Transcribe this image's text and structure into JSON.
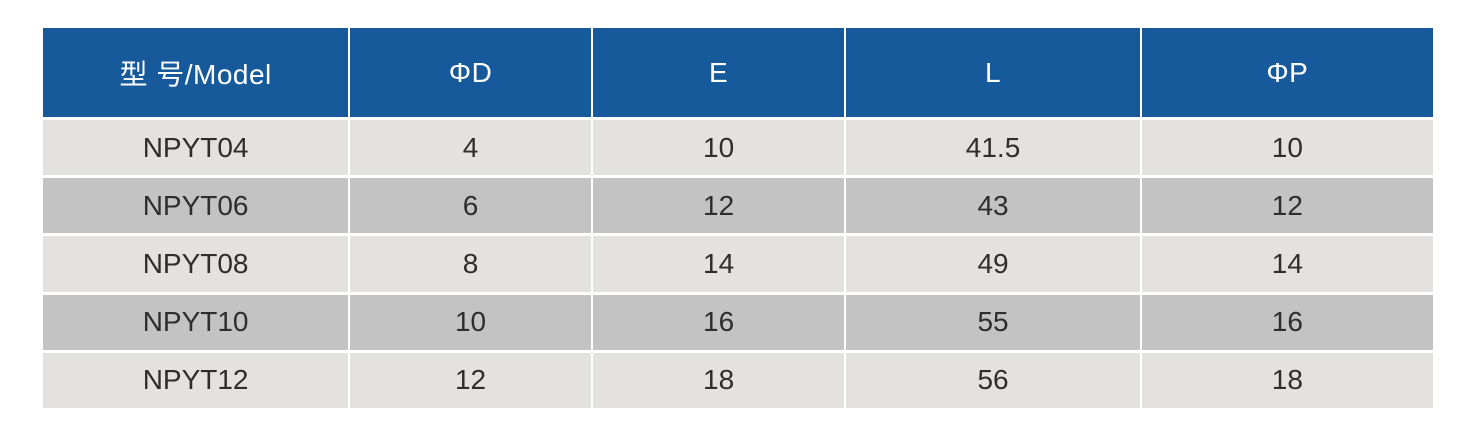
{
  "table": {
    "columns": [
      "型 号/Model",
      "ΦD",
      "E",
      "L",
      "ΦP"
    ],
    "rows": [
      [
        "NPYT04",
        "4",
        "10",
        "41.5",
        "10"
      ],
      [
        "NPYT06",
        "6",
        "12",
        "43",
        "12"
      ],
      [
        "NPYT08",
        "8",
        "14",
        "49",
        "14"
      ],
      [
        "NPYT10",
        "10",
        "16",
        "55",
        "16"
      ],
      [
        "NPYT12",
        "12",
        "18",
        "56",
        "18"
      ]
    ],
    "colors": {
      "header_bg": "#175a9c",
      "header_text": "#ffffff",
      "row_light": "#e3e2e0",
      "row_dark": "#c3c3c3",
      "body_text": "#2e2e2e",
      "page_bg": "#ffffff"
    }
  },
  "chart_data": {
    "type": "table",
    "title": "",
    "columns": [
      "型 号/Model",
      "ΦD",
      "E",
      "L",
      "ΦP"
    ],
    "series": [
      {
        "name": "NPYT04",
        "values": [
          4,
          10,
          41.5,
          10
        ]
      },
      {
        "name": "NPYT06",
        "values": [
          6,
          12,
          43,
          12
        ]
      },
      {
        "name": "NPYT08",
        "values": [
          8,
          14,
          49,
          14
        ]
      },
      {
        "name": "NPYT10",
        "values": [
          10,
          16,
          55,
          16
        ]
      },
      {
        "name": "NPYT12",
        "values": [
          12,
          18,
          56,
          18
        ]
      }
    ]
  }
}
